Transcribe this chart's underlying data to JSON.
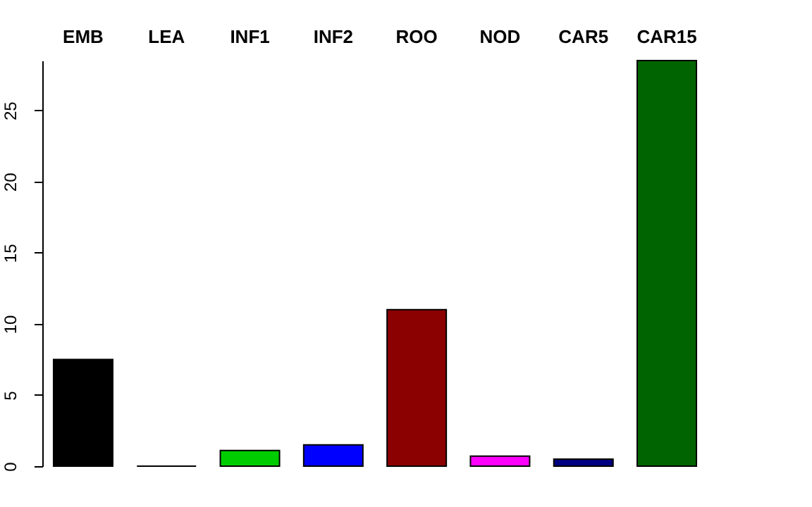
{
  "chart_data": {
    "type": "bar",
    "categories": [
      "EMB",
      "LEA",
      "INF1",
      "INF2",
      "ROO",
      "NOD",
      "CAR5",
      "CAR15"
    ],
    "values": [
      7.5,
      0,
      1.1,
      1.5,
      11,
      0.7,
      0.5,
      28.5
    ],
    "colors": [
      "#000000",
      "#000000",
      "#00cd00",
      "#0000ff",
      "#8b0000",
      "#ff00ff",
      "#000080",
      "#006400"
    ],
    "ylim": [
      0,
      28.5
    ],
    "yticks": [
      0,
      5,
      10,
      15,
      20,
      25
    ],
    "grid": false
  }
}
